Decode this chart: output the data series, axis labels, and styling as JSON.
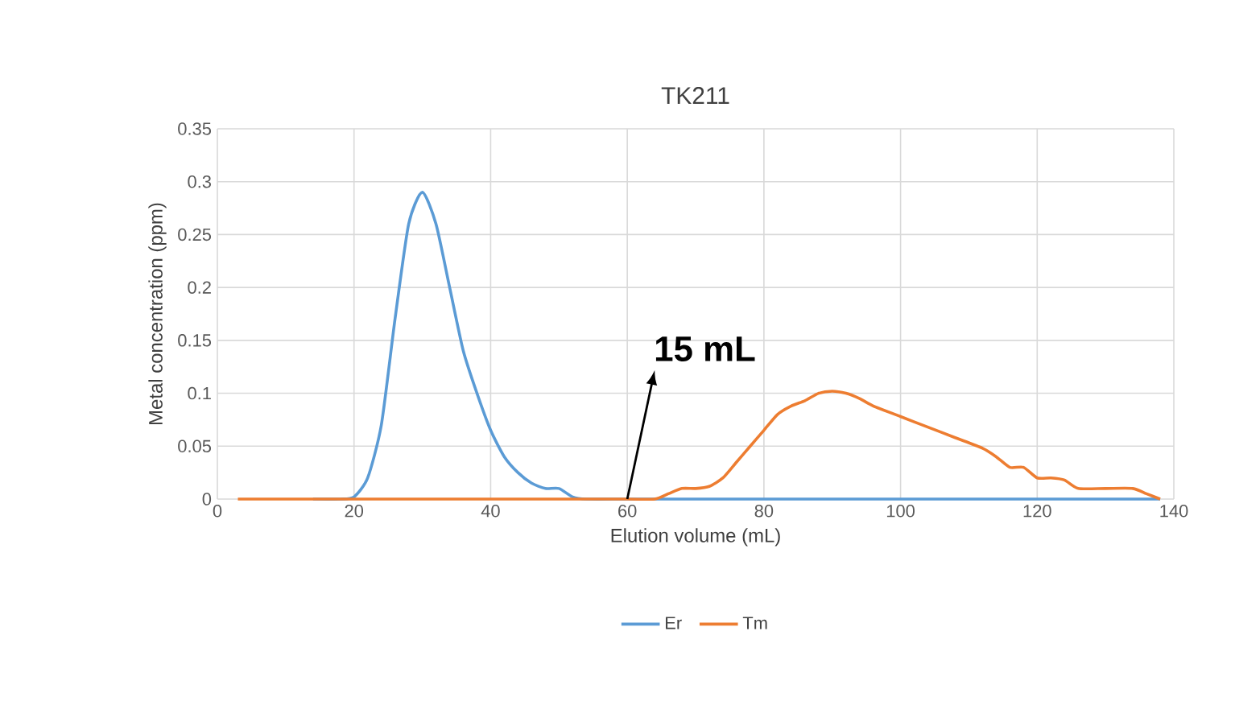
{
  "chart_data": {
    "type": "line",
    "title": "TK211",
    "xlabel": "Elution volume (mL)",
    "ylabel": "Metal concentration (ppm)",
    "xlim": [
      0,
      140
    ],
    "xticks": [
      0,
      20,
      40,
      60,
      80,
      100,
      120,
      140
    ],
    "ylim": [
      0,
      0.35
    ],
    "yticks": [
      0,
      0.05,
      0.1,
      0.15,
      0.2,
      0.25,
      0.3,
      0.35
    ],
    "grid": true,
    "legend": "bottom",
    "marker": "none",
    "line_style": "solid",
    "annotations": [
      {
        "text": "15 mL",
        "x": 60,
        "y": 0
      }
    ],
    "series": [
      {
        "name": "Er",
        "color": "#5b9bd5",
        "x": [
          14,
          18,
          20,
          22,
          24,
          26,
          28,
          30,
          32,
          34,
          36,
          38,
          40,
          42,
          44,
          46,
          48,
          50,
          52,
          54,
          60,
          70,
          80,
          90,
          100,
          110,
          120,
          130,
          138
        ],
        "values": [
          0,
          0,
          0.002,
          0.02,
          0.07,
          0.17,
          0.26,
          0.29,
          0.26,
          0.2,
          0.14,
          0.1,
          0.065,
          0.04,
          0.025,
          0.015,
          0.01,
          0.01,
          0.002,
          0,
          0,
          0,
          0,
          0,
          0,
          0,
          0,
          0,
          0
        ]
      },
      {
        "name": "Tm",
        "color": "#ed7d31",
        "x": [
          3,
          10,
          20,
          30,
          40,
          50,
          60,
          64,
          66,
          68,
          70,
          72,
          74,
          76,
          78,
          80,
          82,
          84,
          86,
          88,
          90,
          92,
          94,
          96,
          100,
          104,
          108,
          112,
          114,
          116,
          118,
          120,
          122,
          124,
          126,
          130,
          134,
          136,
          138
        ],
        "values": [
          0,
          0,
          0,
          0,
          0,
          0,
          0,
          0,
          0.005,
          0.01,
          0.01,
          0.012,
          0.02,
          0.035,
          0.05,
          0.065,
          0.08,
          0.088,
          0.093,
          0.1,
          0.102,
          0.1,
          0.095,
          0.088,
          0.078,
          0.068,
          0.058,
          0.048,
          0.04,
          0.03,
          0.03,
          0.02,
          0.02,
          0.018,
          0.01,
          0.01,
          0.01,
          0.005,
          0
        ]
      }
    ]
  }
}
